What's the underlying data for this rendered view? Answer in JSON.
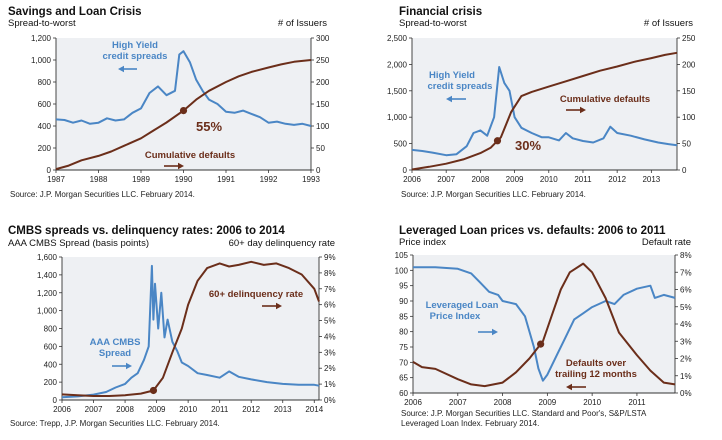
{
  "colors": {
    "blue": "#4a86c5",
    "brown": "#6b2e1a",
    "panel": "#eef0f3"
  },
  "chart_data": [
    {
      "type": "line",
      "title": "Savings and Loan Crisis",
      "left_axis_label": "Spread-to-worst",
      "right_axis_label": "# of Issuers",
      "source": "Source: J.P. Morgan Securities LLC. February 2014.",
      "xlim": [
        1987,
        1993
      ],
      "x_ticks": [
        1987,
        1988,
        1989,
        1990,
        1991,
        1992,
        1993
      ],
      "left_ylim": [
        0,
        1200
      ],
      "left_ticks": [
        "0",
        "200",
        "400",
        "600",
        "800",
        "1,000",
        "1,200"
      ],
      "right_ylim": [
        0,
        300
      ],
      "right_ticks": [
        "0",
        "50",
        "100",
        "150",
        "200",
        "250",
        "300"
      ],
      "series": [
        {
          "name": "High Yield credit spreads",
          "axis": "left",
          "x": [
            1987.0,
            1987.2,
            1987.4,
            1987.6,
            1987.8,
            1988.0,
            1988.2,
            1988.4,
            1988.6,
            1988.8,
            1989.0,
            1989.2,
            1989.4,
            1989.6,
            1989.8,
            1989.9,
            1990.0,
            1990.15,
            1990.3,
            1990.45,
            1990.6,
            1990.8,
            1991.0,
            1991.2,
            1991.4,
            1991.6,
            1991.8,
            1992.0,
            1992.2,
            1992.4,
            1992.6,
            1992.8,
            1993.0
          ],
          "y": [
            460,
            455,
            430,
            450,
            420,
            430,
            470,
            450,
            460,
            520,
            560,
            700,
            760,
            680,
            720,
            1050,
            1080,
            980,
            820,
            720,
            640,
            600,
            530,
            520,
            540,
            510,
            480,
            430,
            440,
            420,
            410,
            420,
            400
          ]
        },
        {
          "name": "Cumulative defaults",
          "axis": "right",
          "x": [
            1987.0,
            1987.3,
            1987.6,
            1988.0,
            1988.3,
            1988.6,
            1989.0,
            1989.3,
            1989.6,
            1990.0,
            1990.3,
            1990.6,
            1991.0,
            1991.3,
            1991.6,
            1992.0,
            1992.3,
            1992.6,
            1993.0
          ],
          "y": [
            2,
            10,
            22,
            32,
            42,
            55,
            72,
            90,
            108,
            135,
            160,
            180,
            200,
            213,
            223,
            233,
            240,
            246,
            250
          ]
        }
      ],
      "annotations": [
        {
          "text": "High Yield",
          "series": "High Yield credit spreads"
        },
        {
          "text": "credit spreads",
          "series": "High Yield credit spreads"
        },
        {
          "text": "Cumulative defaults",
          "series": "Cumulative defaults"
        },
        {
          "text": "55%",
          "x": 1990.0,
          "series": "Cumulative defaults"
        }
      ]
    },
    {
      "type": "line",
      "title": "Financial crisis",
      "left_axis_label": "Spread-to-worst",
      "right_axis_label": "# of Issuers",
      "source": "Source: J.P. Morgan Securities LLC. February 2014.",
      "xlim": [
        2006,
        2013.75
      ],
      "x_ticks": [
        2006,
        2007,
        2008,
        2009,
        2010,
        2011,
        2012,
        2013
      ],
      "left_ylim": [
        0,
        2500
      ],
      "left_ticks": [
        "0",
        "500",
        "1,000",
        "1,500",
        "2,000",
        "2,500"
      ],
      "right_ylim": [
        0,
        250
      ],
      "right_ticks": [
        "0",
        "50",
        "100",
        "150",
        "200",
        "250"
      ],
      "series": [
        {
          "name": "High Yield credit spreads",
          "axis": "left",
          "x": [
            2006.0,
            2006.3,
            2006.6,
            2007.0,
            2007.3,
            2007.6,
            2007.8,
            2008.0,
            2008.2,
            2008.4,
            2008.55,
            2008.7,
            2008.85,
            2009.0,
            2009.2,
            2009.5,
            2009.8,
            2010.0,
            2010.3,
            2010.5,
            2010.7,
            2011.0,
            2011.3,
            2011.6,
            2011.8,
            2012.0,
            2012.4,
            2012.8,
            2013.2,
            2013.5,
            2013.75
          ],
          "y": [
            380,
            360,
            330,
            280,
            300,
            450,
            700,
            750,
            650,
            1000,
            1950,
            1650,
            1500,
            1000,
            800,
            700,
            620,
            620,
            560,
            700,
            600,
            550,
            520,
            600,
            820,
            700,
            650,
            580,
            520,
            490,
            470
          ]
        },
        {
          "name": "Cumulative defaults",
          "axis": "right",
          "x": [
            2006.0,
            2006.5,
            2007.0,
            2007.5,
            2008.0,
            2008.3,
            2008.6,
            2008.9,
            2009.2,
            2009.5,
            2010.0,
            2010.5,
            2011.0,
            2011.5,
            2012.0,
            2012.5,
            2013.0,
            2013.4,
            2013.75
          ],
          "y": [
            1,
            6,
            12,
            20,
            32,
            42,
            62,
            110,
            140,
            148,
            158,
            168,
            178,
            188,
            196,
            205,
            212,
            218,
            222
          ]
        }
      ],
      "annotations": [
        {
          "text": "High Yield",
          "series": "High Yield credit spreads"
        },
        {
          "text": "credit spreads",
          "series": "High Yield credit spreads"
        },
        {
          "text": "Cumulative defaults",
          "series": "Cumulative defaults"
        },
        {
          "text": "30%",
          "x": 2008.5,
          "series": "Cumulative defaults"
        }
      ]
    },
    {
      "type": "line",
      "title": "CMBS spreads vs. delinquency rates: 2006 to 2014",
      "left_axis_label": "AAA CMBS Spread (basis points)",
      "right_axis_label": "60+ day delinquency rate",
      "source": "Source: Trepp, J.P. Morgan Securities LLC. February 2014.",
      "xlim": [
        2006,
        2014.15
      ],
      "x_ticks": [
        2006,
        2007,
        2008,
        2009,
        2010,
        2011,
        2012,
        2013,
        2014
      ],
      "left_ylim": [
        0,
        1600
      ],
      "left_ticks": [
        "0",
        "200",
        "400",
        "600",
        "800",
        "1,000",
        "1,200",
        "1,400",
        "1,600"
      ],
      "right_ylim": [
        0,
        9
      ],
      "right_ticks": [
        "0%",
        "1%",
        "2%",
        "3%",
        "4%",
        "5%",
        "6%",
        "7%",
        "8%",
        "9%"
      ],
      "series": [
        {
          "name": "AAA CMBS Spread",
          "axis": "left",
          "x": [
            2006.0,
            2006.5,
            2007.0,
            2007.4,
            2007.7,
            2008.0,
            2008.2,
            2008.4,
            2008.6,
            2008.75,
            2008.85,
            2008.9,
            2008.95,
            2009.05,
            2009.15,
            2009.25,
            2009.35,
            2009.5,
            2009.65,
            2009.8,
            2010.0,
            2010.3,
            2010.6,
            2011.0,
            2011.3,
            2011.6,
            2012.0,
            2012.5,
            2013.0,
            2013.5,
            2014.0,
            2014.15
          ],
          "y": [
            30,
            40,
            60,
            90,
            140,
            180,
            250,
            300,
            450,
            600,
            1500,
            900,
            1300,
            800,
            1200,
            700,
            900,
            650,
            550,
            420,
            380,
            300,
            280,
            250,
            320,
            260,
            230,
            200,
            180,
            170,
            170,
            160
          ]
        },
        {
          "name": "60+ delinquency rate",
          "axis": "right",
          "x": [
            2006.0,
            2006.5,
            2007.0,
            2007.5,
            2008.0,
            2008.5,
            2008.9,
            2009.2,
            2009.5,
            2009.8,
            2010.0,
            2010.3,
            2010.6,
            2011.0,
            2011.3,
            2011.6,
            2012.0,
            2012.4,
            2012.8,
            2013.2,
            2013.6,
            2014.0,
            2014.15
          ],
          "y": [
            0.35,
            0.3,
            0.25,
            0.25,
            0.3,
            0.4,
            0.6,
            1.4,
            3.0,
            4.5,
            6.0,
            7.5,
            8.3,
            8.6,
            8.4,
            8.5,
            8.7,
            8.5,
            8.6,
            8.3,
            7.9,
            7.0,
            6.2
          ]
        }
      ],
      "annotations": [
        {
          "text": "AAA CMBS",
          "series": "AAA CMBS Spread"
        },
        {
          "text": "Spread",
          "series": "AAA CMBS Spread"
        },
        {
          "text": "60+ delinquency rate",
          "series": "60+ delinquency rate"
        }
      ]
    },
    {
      "type": "line",
      "title": "Leveraged Loan prices vs. defaults: 2006 to 2011",
      "left_axis_label": "Price index",
      "right_axis_label": "Default rate",
      "source": "Source: J.P. Morgan Securities LLC. Standard and Poor's, S&P/LSTA",
      "source_line2": "Leveraged Loan Index. February 2014.",
      "xlim": [
        2006,
        2011.85
      ],
      "x_ticks": [
        2006,
        2007,
        2008,
        2009,
        2010,
        2011
      ],
      "left_ylim": [
        60,
        105
      ],
      "left_ticks": [
        "60",
        "65",
        "70",
        "75",
        "80",
        "85",
        "90",
        "95",
        "100",
        "105"
      ],
      "right_ylim": [
        0,
        8
      ],
      "right_ticks": [
        "0%",
        "1%",
        "2%",
        "3%",
        "4%",
        "5%",
        "6%",
        "7%",
        "8%"
      ],
      "series": [
        {
          "name": "Leveraged Loan Price Index",
          "axis": "left",
          "x": [
            2006.0,
            2006.5,
            2007.0,
            2007.3,
            2007.5,
            2007.7,
            2007.9,
            2008.0,
            2008.3,
            2008.5,
            2008.7,
            2008.8,
            2008.9,
            2009.0,
            2009.2,
            2009.4,
            2009.6,
            2009.8,
            2010.0,
            2010.3,
            2010.5,
            2010.7,
            2011.0,
            2011.3,
            2011.4,
            2011.6,
            2011.85
          ],
          "y": [
            101,
            101,
            100.5,
            99,
            96,
            93,
            92,
            90,
            89,
            85,
            75,
            68,
            64,
            66,
            72,
            78,
            84,
            86,
            88,
            90,
            89,
            92,
            94,
            95,
            91,
            92,
            91
          ]
        },
        {
          "name": "Defaults over trailing 12 months",
          "axis": "right",
          "x": [
            2006.0,
            2006.2,
            2006.5,
            2007.0,
            2007.3,
            2007.6,
            2008.0,
            2008.3,
            2008.6,
            2008.9,
            2009.1,
            2009.3,
            2009.5,
            2009.8,
            2010.0,
            2010.3,
            2010.6,
            2011.0,
            2011.3,
            2011.6,
            2011.85
          ],
          "y": [
            1.8,
            1.5,
            1.4,
            0.8,
            0.5,
            0.4,
            0.6,
            1.2,
            2.0,
            3.0,
            4.5,
            6.0,
            7.0,
            7.5,
            7.0,
            5.5,
            3.5,
            2.2,
            1.3,
            0.6,
            0.5
          ]
        }
      ],
      "annotations": [
        {
          "text": "Leveraged Loan",
          "series": "Leveraged Loan Price Index"
        },
        {
          "text": "Price Index",
          "series": "Leveraged Loan Price Index"
        },
        {
          "text": "Defaults over",
          "series": "Defaults over trailing 12 months"
        },
        {
          "text": "trailing 12 months",
          "series": "Defaults over trailing 12 months"
        }
      ]
    }
  ]
}
